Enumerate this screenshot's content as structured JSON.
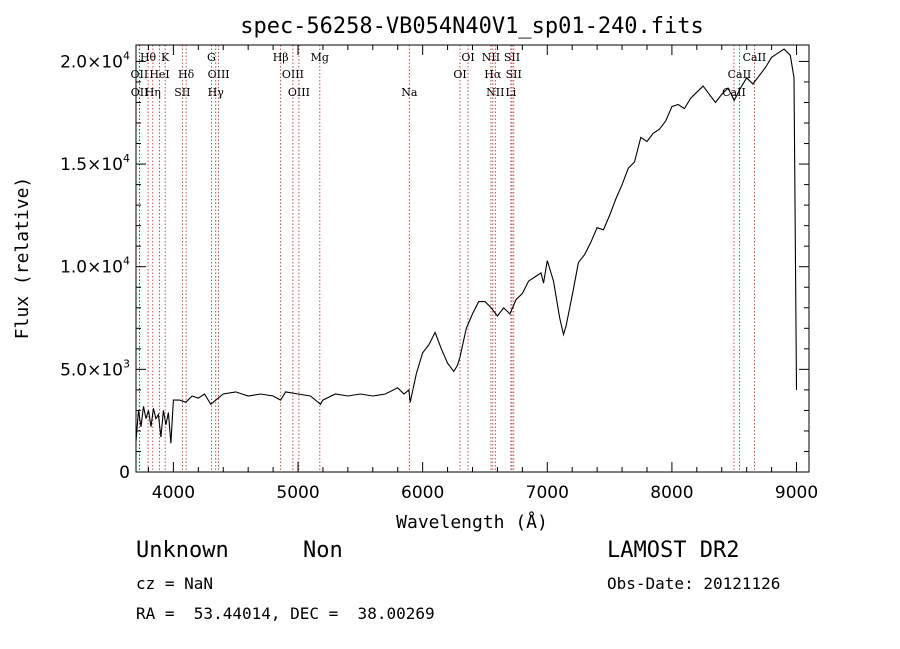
{
  "chart_data": {
    "type": "line",
    "title": "spec-56258-VB054N40V1_sp01-240.fits",
    "xlabel": "Wavelength (Å)",
    "ylabel": "Flux (relative)",
    "xlim": [
      3700,
      9100
    ],
    "ylim": [
      0,
      20800
    ],
    "x_ticks": [
      {
        "value": 4000,
        "label": "4000"
      },
      {
        "value": 5000,
        "label": "5000"
      },
      {
        "value": 6000,
        "label": "6000"
      },
      {
        "value": 7000,
        "label": "7000"
      },
      {
        "value": 8000,
        "label": "8000"
      },
      {
        "value": 9000,
        "label": "9000"
      }
    ],
    "y_ticks": [
      {
        "value": 0,
        "mant": "0",
        "exp": ""
      },
      {
        "value": 5000,
        "mant": "5.0×10",
        "exp": "3"
      },
      {
        "value": 10000,
        "mant": "1.0×10",
        "exp": "4"
      },
      {
        "value": 15000,
        "mant": "1.5×10",
        "exp": "4"
      },
      {
        "value": 20000,
        "mant": "2.0×10",
        "exp": "4"
      }
    ],
    "line_markers": [
      {
        "label": "Hθ",
        "wave": 3797,
        "row": 0
      },
      {
        "label": "K",
        "wave": 3934,
        "row": 0
      },
      {
        "label": "G",
        "wave": 4305,
        "row": 0
      },
      {
        "label": "Hβ",
        "wave": 4861,
        "row": 0
      },
      {
        "label": "Mg",
        "wave": 5175,
        "row": 0
      },
      {
        "label": "OI",
        "wave": 6364,
        "row": 0
      },
      {
        "label": "NII",
        "wave": 6548,
        "row": 0
      },
      {
        "label": "SII",
        "wave": 6717,
        "row": 0
      },
      {
        "label": "CaII",
        "wave": 8662,
        "row": 0
      },
      {
        "label": "OII",
        "wave": 3727,
        "row": 1
      },
      {
        "label": "HeI",
        "wave": 3889,
        "row": 1
      },
      {
        "label": "Hδ",
        "wave": 4102,
        "row": 1
      },
      {
        "label": "OIII",
        "wave": 4363,
        "row": 1
      },
      {
        "label": "OIII",
        "wave": 4959,
        "row": 1
      },
      {
        "label": "OI",
        "wave": 6300,
        "row": 1
      },
      {
        "label": "Hα",
        "wave": 6563,
        "row": 1
      },
      {
        "label": "SII",
        "wave": 6731,
        "row": 1
      },
      {
        "label": "CaII",
        "wave": 8542,
        "row": 1
      },
      {
        "label": "OII",
        "wave": 3729,
        "row": 2
      },
      {
        "label": "Hη",
        "wave": 3835,
        "row": 2
      },
      {
        "label": "SII",
        "wave": 4072,
        "row": 2
      },
      {
        "label": "Hγ",
        "wave": 4340,
        "row": 2
      },
      {
        "label": "OIII",
        "wave": 5007,
        "row": 2
      },
      {
        "label": "Na",
        "wave": 5893,
        "row": 2
      },
      {
        "label": "NII",
        "wave": 6583,
        "row": 2
      },
      {
        "label": "Li",
        "wave": 6708,
        "row": 2
      },
      {
        "label": "CaII",
        "wave": 8498,
        "row": 2
      }
    ],
    "series": [
      {
        "name": "flux",
        "x": [
          3700,
          3720,
          3740,
          3760,
          3780,
          3800,
          3820,
          3840,
          3860,
          3880,
          3900,
          3920,
          3940,
          3960,
          3980,
          4000,
          4050,
          4100,
          4150,
          4200,
          4250,
          4300,
          4340,
          4400,
          4500,
          4600,
          4700,
          4800,
          4860,
          4900,
          5000,
          5100,
          5180,
          5200,
          5300,
          5400,
          5500,
          5600,
          5700,
          5800,
          5850,
          5890,
          5900,
          5950,
          6000,
          6050,
          6100,
          6150,
          6200,
          6250,
          6280,
          6300,
          6350,
          6400,
          6450,
          6500,
          6550,
          6600,
          6650,
          6700,
          6750,
          6800,
          6850,
          6900,
          6950,
          6970,
          7000,
          7050,
          7100,
          7130,
          7150,
          7200,
          7250,
          7300,
          7350,
          7400,
          7450,
          7500,
          7550,
          7600,
          7650,
          7700,
          7750,
          7800,
          7850,
          7900,
          7950,
          8000,
          8050,
          8100,
          8150,
          8200,
          8250,
          8300,
          8350,
          8400,
          8450,
          8500,
          8550,
          8600,
          8650,
          8700,
          8750,
          8800,
          8850,
          8900,
          8950,
          8980,
          9000
        ],
        "y": [
          1500,
          3000,
          2200,
          3200,
          2600,
          3000,
          2200,
          3100,
          2600,
          2800,
          1700,
          3000,
          2300,
          2900,
          1400,
          3500,
          3500,
          3400,
          3700,
          3600,
          3800,
          3300,
          3500,
          3800,
          3900,
          3700,
          3800,
          3700,
          3500,
          3900,
          3800,
          3700,
          3300,
          3500,
          3800,
          3700,
          3800,
          3700,
          3800,
          4100,
          3800,
          4000,
          3400,
          4800,
          5800,
          6200,
          6800,
          6000,
          5300,
          4900,
          5200,
          5600,
          7000,
          7700,
          8300,
          8300,
          8000,
          7600,
          8000,
          7700,
          8400,
          8700,
          9300,
          9500,
          9700,
          9200,
          10300,
          9300,
          7500,
          6700,
          7100,
          8600,
          10200,
          10600,
          11200,
          11900,
          11800,
          12500,
          13300,
          14000,
          14800,
          15100,
          16300,
          16100,
          16500,
          16700,
          17100,
          17800,
          17900,
          17700,
          18200,
          18500,
          18800,
          18400,
          18000,
          18400,
          18700,
          18100,
          18700,
          19200,
          18900,
          19300,
          19700,
          20200,
          20400,
          20600,
          20300,
          19200,
          4000
        ]
      }
    ]
  },
  "info": {
    "object_class": "Unknown",
    "object_subclass": "Non",
    "cz": "cz = NaN",
    "coords": "RA =  53.44014, DEC =  38.00269",
    "survey": "LAMOST DR2",
    "obs_date": "Obs-Date: 20121126"
  },
  "colors": {
    "axis": "#000000",
    "line": "#000000",
    "marker": "#b22222"
  }
}
